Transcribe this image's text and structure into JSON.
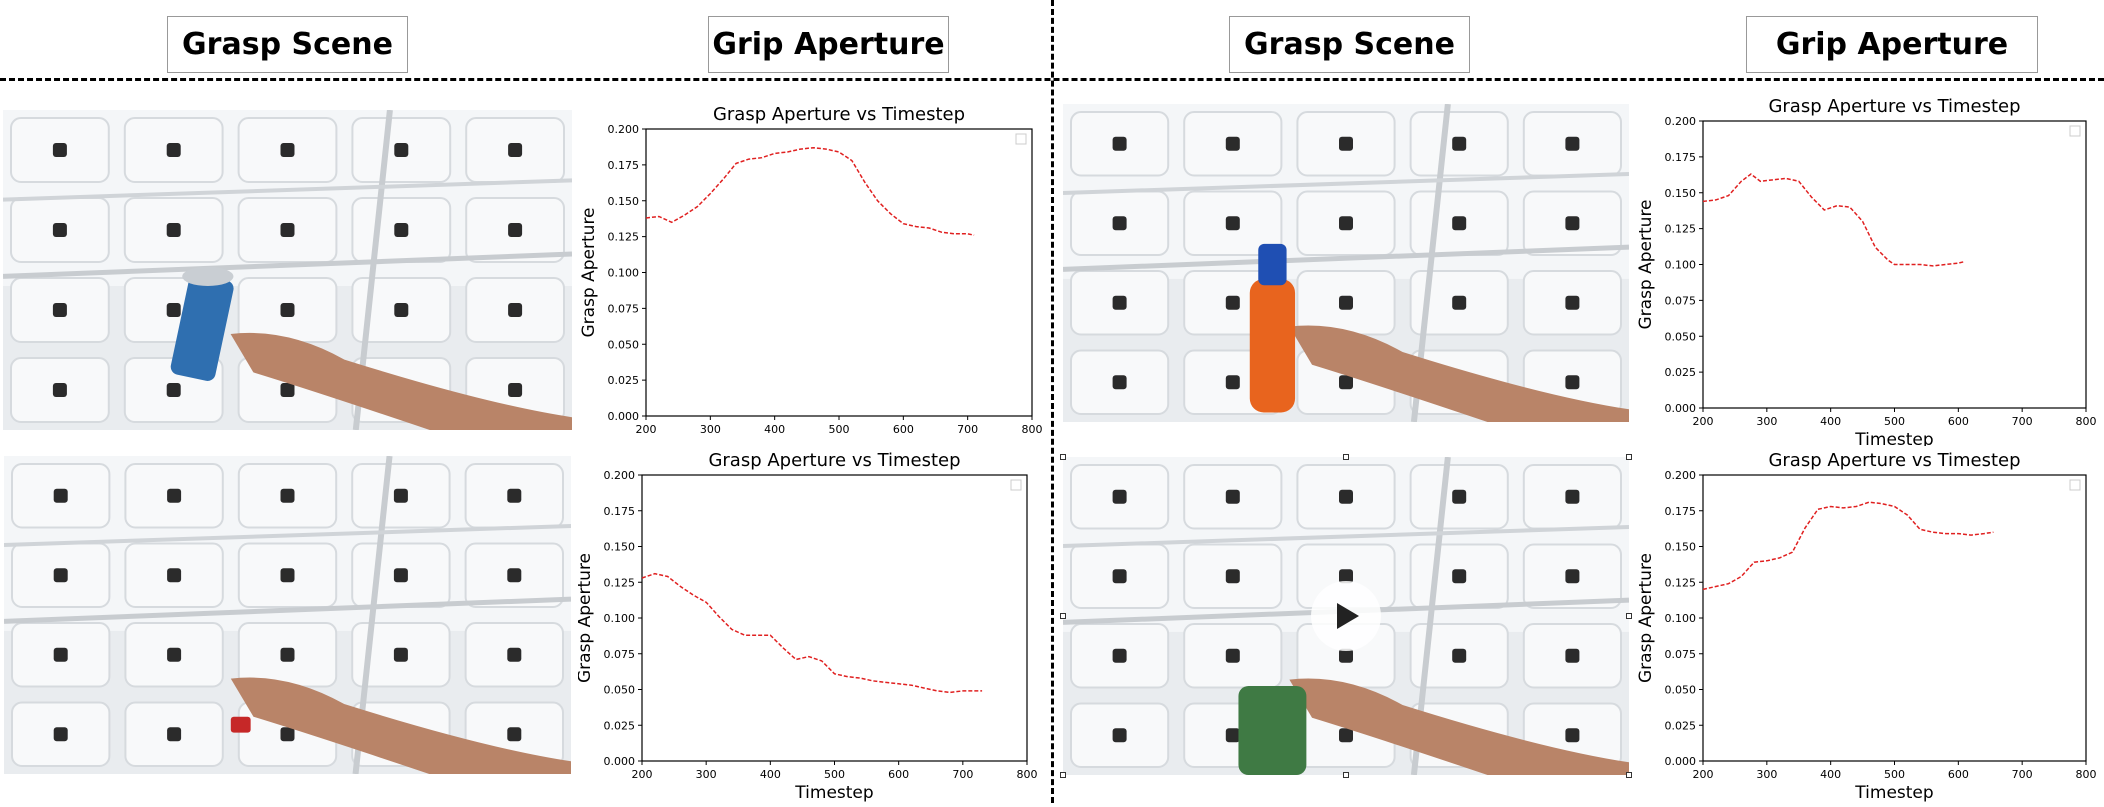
{
  "headers": {
    "left_scene": "Grasp Scene",
    "left_aperture": "Grip Aperture",
    "right_scene": "Grasp Scene",
    "right_aperture": "Grip Aperture"
  },
  "scenes": [
    {
      "object": "blue can"
    },
    {
      "object": "small red object"
    },
    {
      "object": "orange detergent bottle"
    },
    {
      "object": "green mug"
    }
  ],
  "chart_data": [
    {
      "type": "line",
      "title": "Grasp Aperture vs Timestep",
      "xlabel": "",
      "ylabel": "Grasp Aperture",
      "xlim": [
        200,
        800
      ],
      "ylim": [
        0,
        0.2
      ],
      "xticks": [
        "200",
        "300",
        "400",
        "500",
        "600",
        "700",
        "800"
      ],
      "yticks": [
        "0.000",
        "0.025",
        "0.050",
        "0.075",
        "0.100",
        "0.125",
        "0.150",
        "0.175",
        "0.200"
      ],
      "color": "#e02020",
      "series": [
        {
          "x": [
            200,
            220,
            240,
            260,
            280,
            300,
            320,
            340,
            360,
            380,
            400,
            420,
            440,
            460,
            480,
            500,
            520,
            540,
            560,
            580,
            600,
            620,
            640,
            660,
            680,
            700,
            710
          ],
          "values": [
            0.138,
            0.139,
            0.135,
            0.14,
            0.146,
            0.155,
            0.165,
            0.176,
            0.179,
            0.18,
            0.183,
            0.184,
            0.186,
            0.187,
            0.186,
            0.184,
            0.178,
            0.163,
            0.15,
            0.141,
            0.134,
            0.132,
            0.131,
            0.128,
            0.127,
            0.127,
            0.126
          ]
        }
      ]
    },
    {
      "type": "line",
      "title": "Grasp Aperture vs Timestep",
      "xlabel": "Timestep",
      "ylabel": "Grasp Aperture",
      "xlim": [
        200,
        800
      ],
      "ylim": [
        0,
        0.2
      ],
      "xticks": [
        "200",
        "300",
        "400",
        "500",
        "600",
        "700",
        "800"
      ],
      "yticks": [
        "0.000",
        "0.025",
        "0.050",
        "0.075",
        "0.100",
        "0.125",
        "0.150",
        "0.175",
        "0.200"
      ],
      "color": "#e02020",
      "series": [
        {
          "x": [
            200,
            220,
            240,
            260,
            280,
            300,
            320,
            340,
            360,
            380,
            400,
            420,
            440,
            460,
            480,
            500,
            520,
            540,
            560,
            580,
            600,
            620,
            640,
            660,
            680,
            700,
            730
          ],
          "values": [
            0.128,
            0.131,
            0.129,
            0.122,
            0.116,
            0.111,
            0.101,
            0.092,
            0.088,
            0.088,
            0.088,
            0.079,
            0.071,
            0.073,
            0.07,
            0.061,
            0.059,
            0.058,
            0.056,
            0.055,
            0.054,
            0.053,
            0.051,
            0.049,
            0.048,
            0.049,
            0.049
          ]
        }
      ]
    },
    {
      "type": "line",
      "title": "Grasp Aperture vs Timestep",
      "xlabel": "Timestep",
      "ylabel": "Grasp Aperture",
      "xlim": [
        200,
        800
      ],
      "ylim": [
        0,
        0.2
      ],
      "xticks": [
        "200",
        "300",
        "400",
        "500",
        "600",
        "700",
        "800"
      ],
      "yticks": [
        "0.000",
        "0.025",
        "0.050",
        "0.075",
        "0.100",
        "0.125",
        "0.150",
        "0.175",
        "0.200"
      ],
      "color": "#e02020",
      "series": [
        {
          "x": [
            200,
            220,
            240,
            260,
            275,
            290,
            310,
            330,
            350,
            370,
            390,
            410,
            430,
            450,
            470,
            490,
            500,
            520,
            540,
            560,
            580,
            600,
            610
          ],
          "values": [
            0.144,
            0.145,
            0.148,
            0.158,
            0.163,
            0.158,
            0.159,
            0.16,
            0.158,
            0.147,
            0.138,
            0.141,
            0.14,
            0.13,
            0.112,
            0.103,
            0.1,
            0.1,
            0.1,
            0.099,
            0.1,
            0.101,
            0.102
          ]
        }
      ]
    },
    {
      "type": "line",
      "title": "Grasp Aperture vs Timestep",
      "xlabel": "Timestep",
      "ylabel": "Grasp Aperture",
      "xlim": [
        200,
        800
      ],
      "ylim": [
        0,
        0.2
      ],
      "xticks": [
        "200",
        "300",
        "400",
        "500",
        "600",
        "700",
        "800"
      ],
      "yticks": [
        "0.000",
        "0.025",
        "0.050",
        "0.075",
        "0.100",
        "0.125",
        "0.150",
        "0.175",
        "0.200"
      ],
      "color": "#e02020",
      "series": [
        {
          "x": [
            200,
            220,
            240,
            260,
            280,
            300,
            320,
            340,
            360,
            380,
            400,
            420,
            440,
            460,
            480,
            500,
            520,
            540,
            560,
            580,
            600,
            620,
            640,
            655
          ],
          "values": [
            0.12,
            0.122,
            0.124,
            0.129,
            0.139,
            0.14,
            0.142,
            0.146,
            0.163,
            0.176,
            0.178,
            0.177,
            0.178,
            0.181,
            0.18,
            0.178,
            0.172,
            0.162,
            0.16,
            0.159,
            0.159,
            0.158,
            0.159,
            0.16
          ]
        }
      ]
    }
  ]
}
